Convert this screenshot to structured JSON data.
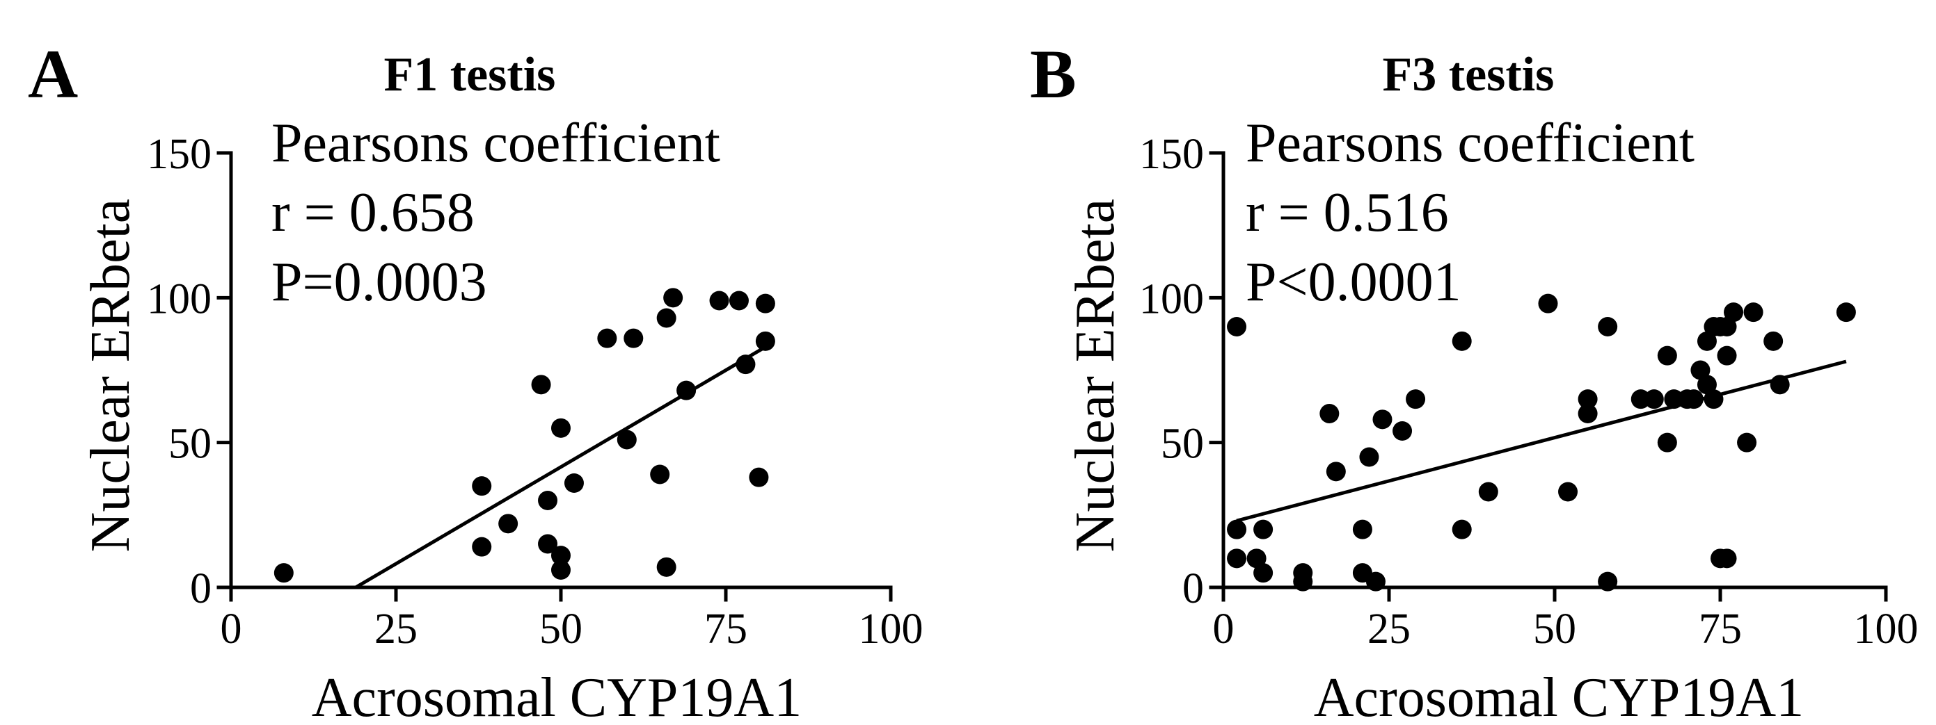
{
  "chart_data": [
    {
      "type": "scatter",
      "panel_label": "A",
      "title": "F1 testis",
      "stats": [
        "Pearsons coefficient",
        "r = 0.658",
        "P=0.0003"
      ],
      "xlabel": "Acrosomal CYP19A1",
      "ylabel": "Nuclear ERbeta",
      "xlim": [
        0,
        100
      ],
      "ylim": [
        0,
        150
      ],
      "xticks": [
        0,
        25,
        50,
        75,
        100
      ],
      "yticks": [
        0,
        50,
        100,
        150
      ],
      "regression": {
        "x_start": 18.9,
        "y_start": 0,
        "x_end": 81,
        "y_end": 83
      },
      "points": [
        [
          8,
          5
        ],
        [
          38,
          35
        ],
        [
          38,
          14
        ],
        [
          42,
          22
        ],
        [
          47,
          70
        ],
        [
          48,
          30
        ],
        [
          48,
          15
        ],
        [
          50,
          55
        ],
        [
          50,
          11
        ],
        [
          50,
          6
        ],
        [
          52,
          36
        ],
        [
          57,
          86
        ],
        [
          60,
          51
        ],
        [
          61,
          86
        ],
        [
          65,
          39
        ],
        [
          66,
          93
        ],
        [
          66,
          7
        ],
        [
          67,
          100
        ],
        [
          69,
          68
        ],
        [
          74,
          99
        ],
        [
          77,
          99
        ],
        [
          78,
          77
        ],
        [
          80,
          38
        ],
        [
          81,
          98
        ],
        [
          81,
          85
        ]
      ]
    },
    {
      "type": "scatter",
      "panel_label": "B",
      "title": "F3 testis",
      "stats": [
        "Pearsons coefficient",
        "r = 0.516",
        "P<0.0001"
      ],
      "xlabel": "Acrosomal CYP19A1",
      "ylabel": "Nuclear ERbeta",
      "xlim": [
        0,
        100
      ],
      "ylim": [
        0,
        150
      ],
      "xticks": [
        0,
        25,
        50,
        75,
        100
      ],
      "yticks": [
        0,
        50,
        100,
        150
      ],
      "regression": {
        "x_start": 2,
        "y_start": 23,
        "x_end": 94,
        "y_end": 78
      },
      "points": [
        [
          2,
          90
        ],
        [
          2,
          20
        ],
        [
          2,
          10
        ],
        [
          5,
          10
        ],
        [
          6,
          20
        ],
        [
          6,
          5
        ],
        [
          12,
          5
        ],
        [
          12,
          2
        ],
        [
          16,
          60
        ],
        [
          17,
          40
        ],
        [
          21,
          20
        ],
        [
          21,
          5
        ],
        [
          22,
          45
        ],
        [
          23,
          2
        ],
        [
          24,
          58
        ],
        [
          27,
          54
        ],
        [
          29,
          65
        ],
        [
          36,
          85
        ],
        [
          36,
          20
        ],
        [
          40,
          33
        ],
        [
          49,
          98
        ],
        [
          52,
          33
        ],
        [
          55,
          65
        ],
        [
          55,
          60
        ],
        [
          58,
          90
        ],
        [
          58,
          2
        ],
        [
          63,
          65
        ],
        [
          65,
          65
        ],
        [
          67,
          80
        ],
        [
          67,
          50
        ],
        [
          68,
          65
        ],
        [
          70,
          65
        ],
        [
          71,
          65
        ],
        [
          72,
          75
        ],
        [
          73,
          70
        ],
        [
          73,
          85
        ],
        [
          74,
          65
        ],
        [
          74,
          90
        ],
        [
          75,
          10
        ],
        [
          76,
          10
        ],
        [
          75,
          90
        ],
        [
          76,
          80
        ],
        [
          76,
          90
        ],
        [
          77,
          95
        ],
        [
          79,
          50
        ],
        [
          80,
          95
        ],
        [
          83,
          85
        ],
        [
          84,
          70
        ],
        [
          94,
          95
        ]
      ]
    }
  ]
}
